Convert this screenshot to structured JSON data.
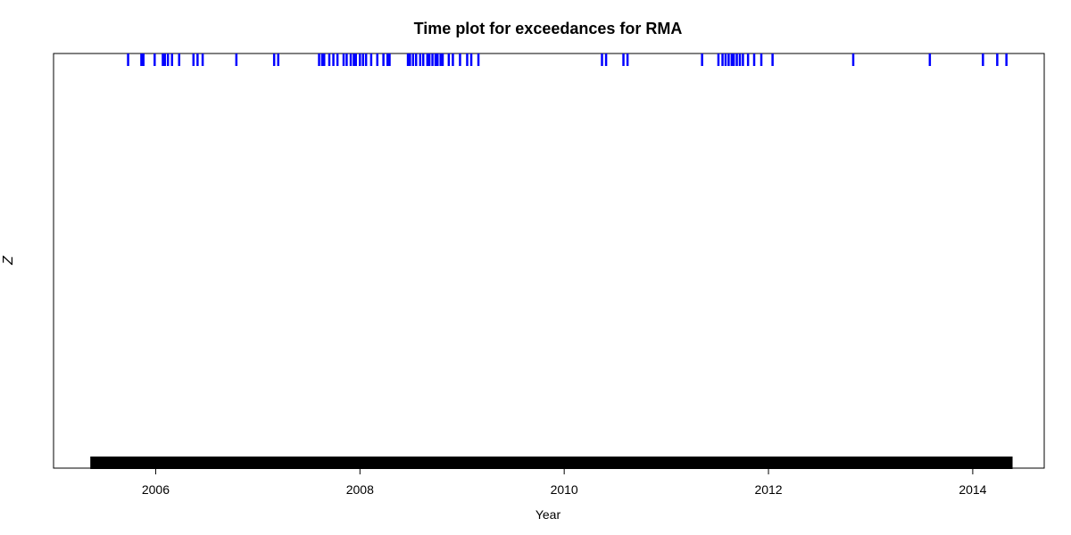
{
  "chart_data": {
    "type": "time-series rug plot",
    "title": "Time plot for exceedances for RMA",
    "xlabel": "Year",
    "ylabel": "Z",
    "xlim": [
      2005.0,
      2014.7
    ],
    "x_ticks": [
      2006,
      2008,
      2010,
      2012,
      2014
    ],
    "x_tick_labels": [
      "2006",
      "2008",
      "2010",
      "2012",
      "2014"
    ],
    "grid": false,
    "legend": "none",
    "series": [
      {
        "role": "exceedance events",
        "color": "#0000ff",
        "level": "top",
        "x": [
          2005.73,
          2005.86,
          2005.88,
          2005.99,
          2006.07,
          2006.09,
          2006.12,
          2006.16,
          2006.23,
          2006.37,
          2006.41,
          2006.46,
          2006.79,
          2007.16,
          2007.2,
          2007.6,
          2007.63,
          2007.65,
          2007.7,
          2007.74,
          2007.78,
          2007.84,
          2007.87,
          2007.91,
          2007.94,
          2007.96,
          2008.0,
          2008.03,
          2008.06,
          2008.11,
          2008.17,
          2008.23,
          2008.27,
          2008.29,
          2008.47,
          2008.49,
          2008.52,
          2008.55,
          2008.59,
          2008.62,
          2008.66,
          2008.68,
          2008.71,
          2008.74,
          2008.76,
          2008.79,
          2008.81,
          2008.87,
          2008.91,
          2008.98,
          2009.05,
          2009.09,
          2009.16,
          2010.37,
          2010.41,
          2010.58,
          2010.62,
          2011.35,
          2011.51,
          2011.55,
          2011.58,
          2011.61,
          2011.64,
          2011.66,
          2011.69,
          2011.72,
          2011.75,
          2011.8,
          2011.86,
          2011.93,
          2012.04,
          2012.83,
          2013.58,
          2014.1,
          2014.24,
          2014.33
        ]
      },
      {
        "role": "observation record",
        "color": "#000000",
        "level": "bottom",
        "x_range": [
          2005.36,
          2014.39
        ]
      }
    ]
  }
}
